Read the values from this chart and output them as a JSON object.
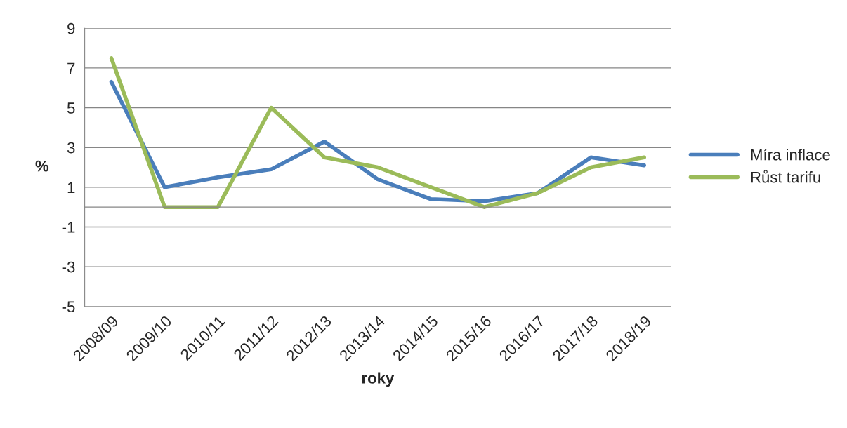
{
  "chart_data": {
    "type": "line",
    "xlabel": "roky",
    "ylabel": "%",
    "categories": [
      "2008/09",
      "2009/10",
      "2010/11",
      "2011/12",
      "2012/13",
      "2013/14",
      "2014/15",
      "2015/16",
      "2016/17",
      "2017/18",
      "2018/19"
    ],
    "series": [
      {
        "name": "Míra inflace",
        "color": "#4a7ebb",
        "values": [
          6.3,
          1.0,
          1.5,
          1.9,
          3.3,
          1.4,
          0.4,
          0.3,
          0.7,
          2.5,
          2.1
        ]
      },
      {
        "name": "Růst tarifu",
        "color": "#9bbb59",
        "values": [
          7.5,
          0,
          0,
          5.0,
          2.5,
          2.0,
          1.0,
          0,
          0.7,
          2.0,
          2.5
        ]
      }
    ],
    "ylim": [
      -5,
      9
    ],
    "yticks": [
      -5,
      -3,
      -1,
      1,
      3,
      5,
      7,
      9
    ],
    "grid": "y",
    "legend": "right",
    "marker": "none",
    "line_style": "solid"
  }
}
